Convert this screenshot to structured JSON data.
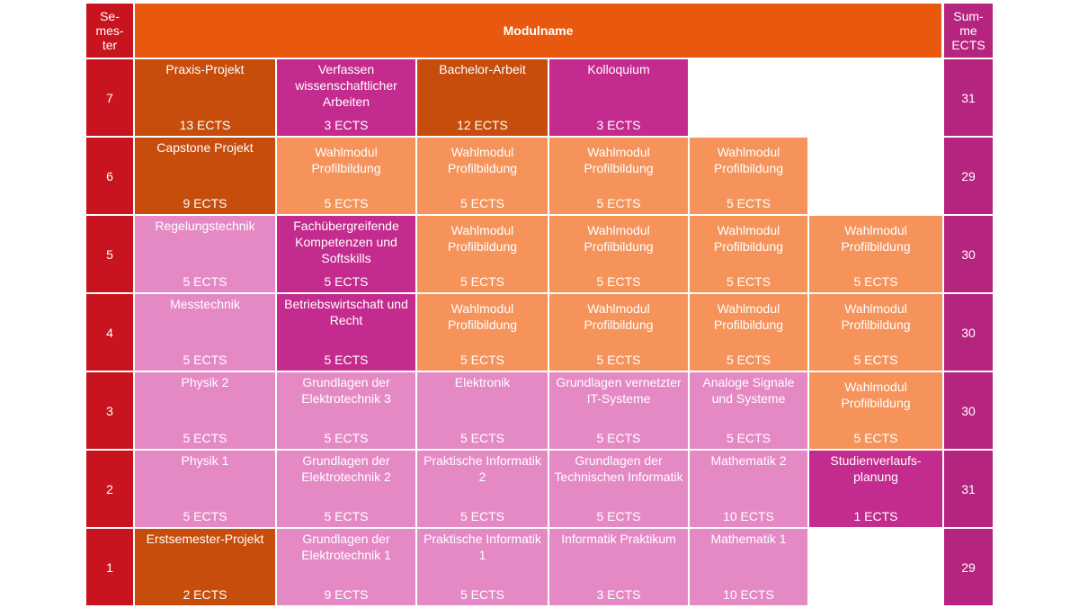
{
  "header": {
    "semester_label": "Se-\nmes-\nter",
    "modulname_label": "Modulname",
    "sum_label": "Sum-\nme\nECTS"
  },
  "rows": [
    {
      "semester": "7",
      "sum": "31",
      "modules": [
        {
          "name": "Praxis-Projekt",
          "ects": "13 ECTS",
          "color": "#c64d0c"
        },
        {
          "name": "Verfassen wissenschaftlicher Arbeiten",
          "ects": "3 ECTS",
          "color": "#c42b8e"
        },
        {
          "name": "Bachelor-Arbeit",
          "ects": "12 ECTS",
          "color": "#c64d0c"
        },
        {
          "name": "Kolloquium",
          "ects": "3 ECTS",
          "color": "#c42b8e"
        }
      ]
    },
    {
      "semester": "6",
      "sum": "29",
      "modules": [
        {
          "name": "Capstone Projekt",
          "ects": "9 ECTS",
          "color": "#c64d0c"
        },
        {
          "name": "Wahlmodul Profilbildung",
          "ects": "5 ECTS",
          "color": "#f5935b"
        },
        {
          "name": "Wahlmodul Profilbildung",
          "ects": "5 ECTS",
          "color": "#f5935b"
        },
        {
          "name": "Wahlmodul Profilbildung",
          "ects": "5 ECTS",
          "color": "#f5935b"
        },
        {
          "name": "Wahlmodul Profilbildung",
          "ects": "5 ECTS",
          "color": "#f5935b"
        }
      ]
    },
    {
      "semester": "5",
      "sum": "30",
      "modules": [
        {
          "name": "Regelungstechnik",
          "ects": "5 ECTS",
          "color": "#e589c5"
        },
        {
          "name": "Fachübergreifende Kompetenzen und Softskills",
          "ects": "5 ECTS",
          "color": "#c42b8e"
        },
        {
          "name": "Wahlmodul Profilbildung",
          "ects": "5 ECTS",
          "color": "#f5935b"
        },
        {
          "name": "Wahlmodul Profilbildung",
          "ects": "5 ECTS",
          "color": "#f5935b"
        },
        {
          "name": "Wahlmodul Profilbildung",
          "ects": "5 ECTS",
          "color": "#f5935b"
        },
        {
          "name": "Wahlmodul Profilbildung",
          "ects": "5 ECTS",
          "color": "#f5935b"
        }
      ]
    },
    {
      "semester": "4",
      "sum": "30",
      "modules": [
        {
          "name": "Messtechnik",
          "ects": "5 ECTS",
          "color": "#e589c5"
        },
        {
          "name": "Betriebswirtschaft und Recht",
          "ects": "5 ECTS",
          "color": "#c42b8e"
        },
        {
          "name": "Wahlmodul Profilbildung",
          "ects": "5 ECTS",
          "color": "#f5935b"
        },
        {
          "name": "Wahlmodul Profilbildung",
          "ects": "5 ECTS",
          "color": "#f5935b"
        },
        {
          "name": "Wahlmodul Profilbildung",
          "ects": "5 ECTS",
          "color": "#f5935b"
        },
        {
          "name": "Wahlmodul Profilbildung",
          "ects": "5 ECTS",
          "color": "#f5935b"
        }
      ]
    },
    {
      "semester": "3",
      "sum": "30",
      "modules": [
        {
          "name": "Physik 2",
          "ects": "5 ECTS",
          "color": "#e589c5"
        },
        {
          "name": "Grundlagen der Elektrotechnik 3",
          "ects": "5 ECTS",
          "color": "#e589c5"
        },
        {
          "name": "Elektronik",
          "ects": "5 ECTS",
          "color": "#e589c5"
        },
        {
          "name": "Grundlagen vernetzter IT-Systeme",
          "ects": "5 ECTS",
          "color": "#e589c5"
        },
        {
          "name": "Analoge Signale und Systeme",
          "ects": "5 ECTS",
          "color": "#e589c5"
        },
        {
          "name": "Wahlmodul Profilbildung",
          "ects": "5 ECTS",
          "color": "#f5935b"
        }
      ]
    },
    {
      "semester": "2",
      "sum": "31",
      "modules": [
        {
          "name": "Physik 1",
          "ects": "5 ECTS",
          "color": "#e589c5"
        },
        {
          "name": "Grundlagen der Elektrotechnik 2",
          "ects": "5 ECTS",
          "color": "#e589c5"
        },
        {
          "name": "Praktische Informatik 2",
          "ects": "5 ECTS",
          "color": "#e589c5"
        },
        {
          "name": "Grundlagen der Technischen Informatik",
          "ects": "5 ECTS",
          "color": "#e589c5"
        },
        {
          "name": "Mathematik 2",
          "ects": "10 ECTS",
          "color": "#e589c5"
        },
        {
          "name": "Studienverlaufs-planung",
          "ects": "1 ECTS",
          "color": "#c42b8e"
        }
      ]
    },
    {
      "semester": "1",
      "sum": "29",
      "modules": [
        {
          "name": "Erstsemester-Projekt",
          "ects": "2 ECTS",
          "color": "#c64d0c"
        },
        {
          "name": "Grundlagen der Elektrotechnik 1",
          "ects": "9 ECTS",
          "color": "#e589c5"
        },
        {
          "name": "Praktische Informatik 1",
          "ects": "5 ECTS",
          "color": "#e589c5"
        },
        {
          "name": "Informatik Praktikum",
          "ects": "3 ECTS",
          "color": "#e589c5"
        },
        {
          "name": "Mathematik 1",
          "ects": "10 ECTS",
          "color": "#e589c5"
        }
      ]
    }
  ]
}
